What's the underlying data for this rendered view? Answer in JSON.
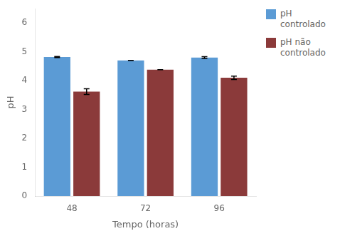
{
  "chart_data": {
    "type": "bar",
    "categories": [
      "48",
      "72",
      "96"
    ],
    "series": [
      {
        "name": "pH\ncontrolado",
        "color": "#5B9BD5",
        "values": [
          4.82,
          4.7,
          4.8
        ],
        "errors": [
          0.02,
          0.0,
          0.03
        ]
      },
      {
        "name": "pH não\ncontrolado",
        "color": "#8B3A3A",
        "values": [
          3.62,
          4.38,
          4.1
        ],
        "errors": [
          0.1,
          0.0,
          0.06
        ]
      }
    ],
    "xlabel": "Tempo (horas)",
    "ylabel": "pH",
    "ylim": [
      0,
      6.5
    ],
    "yticks": [
      0,
      1,
      2,
      3,
      4,
      5,
      6
    ],
    "grid": false,
    "legend": "upper right"
  }
}
